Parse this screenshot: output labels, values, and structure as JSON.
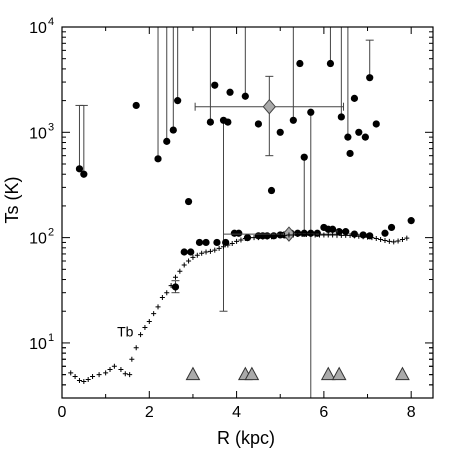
{
  "chart_data": {
    "type": "scatter",
    "xlabel": "R (kpc)",
    "ylabel": "Ts (K)",
    "xlim": [
      0,
      8.5
    ],
    "ylim": [
      3,
      10000
    ],
    "yscale": "log",
    "x_ticks": [
      0,
      2,
      4,
      6,
      8
    ],
    "x_tick_labels": [
      "0",
      "2",
      "4",
      "6",
      "8"
    ],
    "y_ticks": [
      10,
      100,
      1000,
      10000
    ],
    "y_tick_labels": [
      "10",
      "10",
      "10",
      "10"
    ],
    "y_tick_exponents": [
      "1",
      "2",
      "3",
      "4"
    ],
    "annotations": [
      {
        "text": "Tb",
        "x": 1.45,
        "y": 11.5
      }
    ],
    "series": [
      {
        "marker": "circle",
        "color": "#000000",
        "points": [
          {
            "x": 0.4,
            "y": 450,
            "yerr_up": 1800
          },
          {
            "x": 0.5,
            "y": 400,
            "yerr_up": 1800
          },
          {
            "x": 1.7,
            "y": 1800
          },
          {
            "x": 2.2,
            "y": 560,
            "yerr_up": 10000
          },
          {
            "x": 2.4,
            "y": 820,
            "yerr_up": 10000
          },
          {
            "x": 2.55,
            "y": 1050,
            "yerr_up": 10000
          },
          {
            "x": 2.65,
            "y": 2000,
            "yerr_up": 10000
          },
          {
            "x": 3.4,
            "y": 1250,
            "yerr_up": 10000
          },
          {
            "x": 3.5,
            "y": 2800
          },
          {
            "x": 3.7,
            "y": 1300,
            "yerr_low": 20
          },
          {
            "x": 3.8,
            "y": 1250
          },
          {
            "x": 3.85,
            "y": 2400
          },
          {
            "x": 4.2,
            "y": 2200,
            "yerr_up": 10000
          },
          {
            "x": 4.5,
            "y": 1200
          },
          {
            "x": 5.0,
            "y": 1000
          },
          {
            "x": 5.3,
            "y": 1300,
            "yerr_up": 10000
          },
          {
            "x": 5.45,
            "y": 4500
          },
          {
            "x": 5.55,
            "y": 580,
            "yerr_low": 105
          },
          {
            "x": 5.7,
            "y": 1550,
            "yerr_low": 3
          },
          {
            "x": 6.15,
            "y": 4500,
            "yerr_up": 10000
          },
          {
            "x": 6.4,
            "y": 1400,
            "yerr_up": 10000
          },
          {
            "x": 6.55,
            "y": 900,
            "yerr_up": 10000
          },
          {
            "x": 6.6,
            "y": 630
          },
          {
            "x": 6.7,
            "y": 2100
          },
          {
            "x": 6.8,
            "y": 1000
          },
          {
            "x": 6.95,
            "y": 900
          },
          {
            "x": 7.05,
            "y": 3300,
            "yerr_up": 7500
          },
          {
            "x": 7.2,
            "y": 1200
          },
          {
            "x": 2.9,
            "y": 220
          },
          {
            "x": 4.8,
            "y": 280
          },
          {
            "x": 2.8,
            "y": 73
          },
          {
            "x": 2.95,
            "y": 73
          },
          {
            "x": 3.15,
            "y": 90
          },
          {
            "x": 3.3,
            "y": 90
          },
          {
            "x": 3.55,
            "y": 90
          },
          {
            "x": 3.75,
            "y": 90
          },
          {
            "x": 3.95,
            "y": 110
          },
          {
            "x": 4.05,
            "y": 110
          },
          {
            "x": 4.25,
            "y": 100
          },
          {
            "x": 4.5,
            "y": 104
          },
          {
            "x": 4.6,
            "y": 104
          },
          {
            "x": 4.7,
            "y": 104
          },
          {
            "x": 4.85,
            "y": 104
          },
          {
            "x": 5.0,
            "y": 106
          },
          {
            "x": 5.1,
            "y": 106
          },
          {
            "x": 5.25,
            "y": 110
          },
          {
            "x": 5.4,
            "y": 110
          },
          {
            "x": 5.55,
            "y": 110
          },
          {
            "x": 5.7,
            "y": 110
          },
          {
            "x": 5.85,
            "y": 110
          },
          {
            "x": 6.0,
            "y": 125
          },
          {
            "x": 6.1,
            "y": 120
          },
          {
            "x": 6.2,
            "y": 120
          },
          {
            "x": 6.35,
            "y": 114
          },
          {
            "x": 6.5,
            "y": 114
          },
          {
            "x": 6.7,
            "y": 108
          },
          {
            "x": 6.9,
            "y": 106
          },
          {
            "x": 7.05,
            "y": 104
          },
          {
            "x": 7.4,
            "y": 110
          },
          {
            "x": 7.55,
            "y": 125
          },
          {
            "x": 8.0,
            "y": 145
          },
          {
            "x": 2.6,
            "y": 34,
            "yerr_up": 39,
            "yerr_low": 30
          }
        ]
      },
      {
        "marker": "diamond",
        "color": "#aaaaaa",
        "points": [
          {
            "x": 4.75,
            "y": 1750,
            "xerr": [
              3.05,
              6.45
            ],
            "yerr_up": 3400,
            "yerr_low": 600
          },
          {
            "x": 5.2,
            "y": 108,
            "xerr": [
              3.7,
              6.3
            ],
            "yerr_up": 113,
            "yerr_low": 103
          }
        ]
      },
      {
        "marker": "cross",
        "color": "#000000",
        "points": [
          [
            0.2,
            5.2
          ],
          [
            0.3,
            4.8
          ],
          [
            0.4,
            4.4
          ],
          [
            0.5,
            4.3
          ],
          [
            0.6,
            4.5
          ],
          [
            0.7,
            4.8
          ],
          [
            0.85,
            5.0
          ],
          [
            1.0,
            5.2
          ],
          [
            1.1,
            5.6
          ],
          [
            1.2,
            6.0
          ],
          [
            1.35,
            5.6
          ],
          [
            1.45,
            5.1
          ],
          [
            1.55,
            5.0
          ],
          [
            1.6,
            7.0
          ],
          [
            1.7,
            9.0
          ],
          [
            1.8,
            12.0
          ],
          [
            1.9,
            14.0
          ],
          [
            2.0,
            16.0
          ],
          [
            2.1,
            19.0
          ],
          [
            2.2,
            22.0
          ],
          [
            2.3,
            27.0
          ],
          [
            2.4,
            30.0
          ],
          [
            2.5,
            35.0
          ],
          [
            2.6,
            42.0
          ],
          [
            2.7,
            48.0
          ],
          [
            2.8,
            55.0
          ],
          [
            2.9,
            60.0
          ],
          [
            3.0,
            65.0
          ],
          [
            3.1,
            68.0
          ],
          [
            3.2,
            71.0
          ],
          [
            3.3,
            73.0
          ],
          [
            3.4,
            74.0
          ],
          [
            3.5,
            76.0
          ],
          [
            3.6,
            79.0
          ],
          [
            3.7,
            82.0
          ],
          [
            3.8,
            85.0
          ],
          [
            3.9,
            88.0
          ],
          [
            4.0,
            92.0
          ],
          [
            4.1,
            95.0
          ],
          [
            4.2,
            98.0
          ],
          [
            4.3,
            100.0
          ],
          [
            4.4,
            100.0
          ],
          [
            4.5,
            100.0
          ],
          [
            4.6,
            101.0
          ],
          [
            4.7,
            101.0
          ],
          [
            4.8,
            102.0
          ],
          [
            4.9,
            103.0
          ],
          [
            5.0,
            104.0
          ],
          [
            5.1,
            105.0
          ],
          [
            5.2,
            106.0
          ],
          [
            5.3,
            106.0
          ],
          [
            5.4,
            107.0
          ],
          [
            5.5,
            107.0
          ],
          [
            5.6,
            107.0
          ],
          [
            5.7,
            107.0
          ],
          [
            5.8,
            106.0
          ],
          [
            5.9,
            106.0
          ],
          [
            6.0,
            106.0
          ],
          [
            6.1,
            106.0
          ],
          [
            6.2,
            106.0
          ],
          [
            6.3,
            106.0
          ],
          [
            6.4,
            105.0
          ],
          [
            6.5,
            105.0
          ],
          [
            6.6,
            105.0
          ],
          [
            6.7,
            104.0
          ],
          [
            6.8,
            103.0
          ],
          [
            6.9,
            102.0
          ],
          [
            7.0,
            101.0
          ],
          [
            7.1,
            100.0
          ],
          [
            7.2,
            98.0
          ],
          [
            7.3,
            96.0
          ],
          [
            7.4,
            94.0
          ],
          [
            7.5,
            92.0
          ],
          [
            7.6,
            91.0
          ],
          [
            7.7,
            93.0
          ],
          [
            7.8,
            96.0
          ],
          [
            7.9,
            99.0
          ]
        ]
      },
      {
        "marker": "triangle",
        "color": "#aaaaaa",
        "points": [
          [
            3.0,
            5.0
          ],
          [
            4.2,
            5.0
          ],
          [
            4.35,
            5.0
          ],
          [
            6.1,
            5.0
          ],
          [
            6.35,
            5.0
          ],
          [
            7.8,
            5.0
          ]
        ]
      }
    ]
  }
}
